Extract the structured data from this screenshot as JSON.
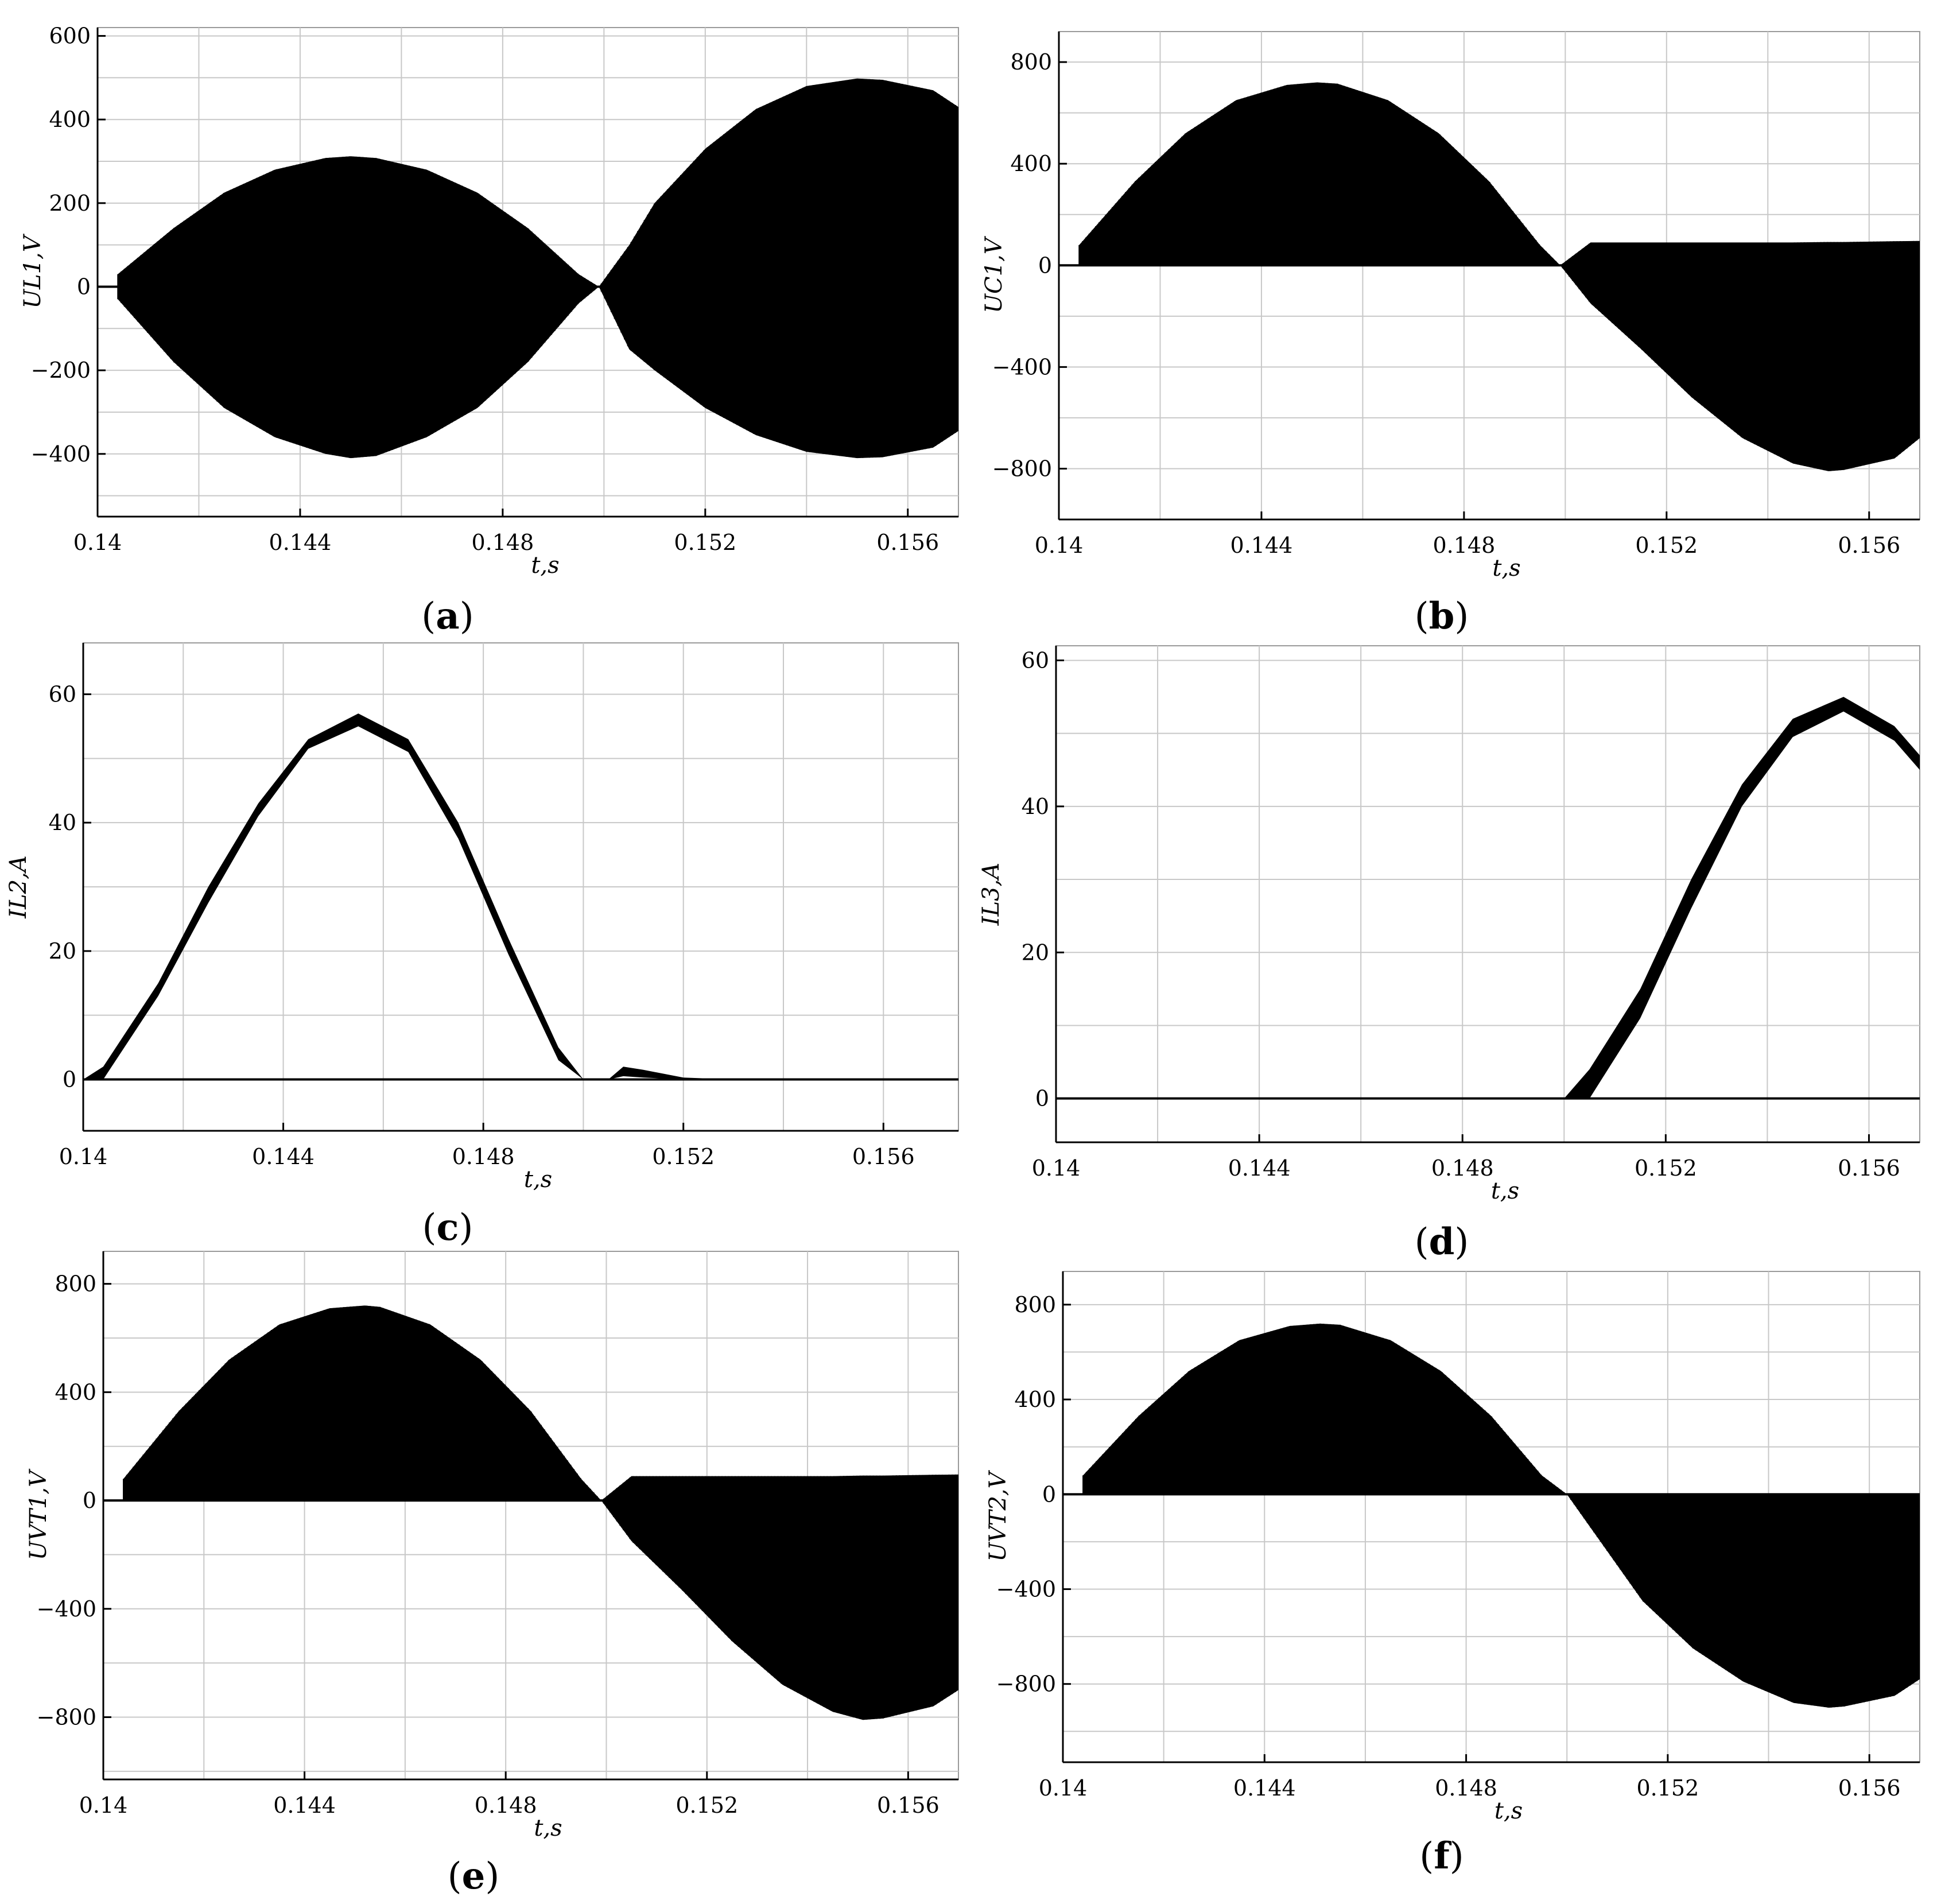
{
  "chart_data": [
    {
      "id": "a",
      "type": "line",
      "caption": "a",
      "xlabel": "t,s",
      "ylabel": "UL1,V",
      "xlim": [
        0.14,
        0.157
      ],
      "ylim": [
        -550,
        620
      ],
      "xticks": [
        0.14,
        0.144,
        0.148,
        0.152,
        0.156
      ],
      "xtick_labels": [
        "0.14",
        "0.144",
        "0.148",
        "0.152",
        "0.156"
      ],
      "yticks": [
        -400,
        -200,
        0,
        200,
        400,
        600
      ],
      "ytick_labels": [
        "−400",
        "−200",
        "0",
        "200",
        "400",
        "600"
      ],
      "grid": true,
      "series": [
        {
          "style": "switching-envelope",
          "x": [
            0.1404,
            0.1415,
            0.1425,
            0.1435,
            0.1445,
            0.145,
            0.1455,
            0.1465,
            0.1475,
            0.1485,
            0.1495,
            0.1499,
            0.1505,
            0.151,
            0.152,
            0.153,
            0.154,
            0.155,
            0.1555,
            0.1565,
            0.157
          ],
          "upper": [
            30,
            140,
            225,
            280,
            308,
            312,
            308,
            280,
            225,
            140,
            30,
            0,
            100,
            200,
            330,
            425,
            480,
            498,
            495,
            470,
            430
          ],
          "lower": [
            -30,
            -180,
            -290,
            -360,
            -400,
            -410,
            -405,
            -360,
            -290,
            -180,
            -40,
            0,
            -150,
            -200,
            -290,
            -355,
            -395,
            -410,
            -408,
            -385,
            -345
          ]
        }
      ]
    },
    {
      "id": "b",
      "type": "line",
      "caption": "b",
      "xlabel": "t,s",
      "ylabel": "UC1,V",
      "xlim": [
        0.14,
        0.157
      ],
      "ylim": [
        -1000,
        920
      ],
      "xticks": [
        0.14,
        0.144,
        0.148,
        0.152,
        0.156
      ],
      "xtick_labels": [
        "0.14",
        "0.144",
        "0.148",
        "0.152",
        "0.156"
      ],
      "yticks": [
        -800,
        -400,
        0,
        400,
        800
      ],
      "ytick_labels": [
        "−800",
        "−400",
        "0",
        "400",
        "800"
      ],
      "grid": true,
      "series": [
        {
          "style": "switching-envelope",
          "x": [
            0.1404,
            0.1415,
            0.1425,
            0.1435,
            0.1445,
            0.1451,
            0.1455,
            0.1465,
            0.1475,
            0.1485,
            0.1495,
            0.1499,
            0.1505,
            0.1515,
            0.1525,
            0.1535,
            0.1545,
            0.1552,
            0.1555,
            0.1565,
            0.157
          ],
          "upper": [
            80,
            330,
            520,
            650,
            710,
            720,
            715,
            650,
            520,
            330,
            80,
            0,
            90,
            90,
            90,
            90,
            90,
            92,
            92,
            95,
            96
          ],
          "lower": [
            0,
            0,
            0,
            0,
            0,
            0,
            0,
            0,
            0,
            0,
            0,
            0,
            -150,
            -330,
            -520,
            -680,
            -780,
            -810,
            -805,
            -760,
            -680
          ]
        }
      ]
    },
    {
      "id": "c",
      "type": "line",
      "caption": "c",
      "xlabel": "t,s",
      "ylabel": "IL2,A",
      "xlim": [
        0.14,
        0.1575
      ],
      "ylim": [
        -8,
        68
      ],
      "xticks": [
        0.14,
        0.144,
        0.148,
        0.152,
        0.156
      ],
      "xtick_labels": [
        "0.14",
        "0.144",
        "0.148",
        "0.152",
        "0.156"
      ],
      "yticks": [
        0,
        20,
        40,
        60
      ],
      "ytick_labels": [
        "0",
        "20",
        "40",
        "60"
      ],
      "grid": true,
      "series": [
        {
          "style": "ripple-band",
          "x": [
            0.14,
            0.1404,
            0.1415,
            0.1425,
            0.1435,
            0.1445,
            0.1455,
            0.1465,
            0.1475,
            0.1485,
            0.1495,
            0.15,
            0.1505,
            0.1508,
            0.1512,
            0.152,
            0.153,
            0.1575
          ],
          "upper": [
            0,
            2,
            15,
            30,
            43,
            53,
            57,
            53,
            40,
            22,
            5,
            0,
            0,
            2,
            1.5,
            0.3,
            0,
            0
          ],
          "lower": [
            0,
            0,
            13,
            27.5,
            41,
            51.5,
            55,
            51,
            37.5,
            19.5,
            3,
            0,
            0,
            0.5,
            0.3,
            0,
            0,
            0
          ]
        }
      ]
    },
    {
      "id": "d",
      "type": "line",
      "caption": "d",
      "xlabel": "t,s",
      "ylabel": "IL3,A",
      "xlim": [
        0.14,
        0.157
      ],
      "ylim": [
        -6,
        62
      ],
      "xticks": [
        0.14,
        0.144,
        0.148,
        0.152,
        0.156
      ],
      "xtick_labels": [
        "0.14",
        "0.144",
        "0.148",
        "0.152",
        "0.156"
      ],
      "yticks": [
        0,
        20,
        40,
        60
      ],
      "ytick_labels": [
        "0",
        "20",
        "40",
        "60"
      ],
      "grid": true,
      "series": [
        {
          "style": "ripple-band",
          "x": [
            0.14,
            0.15,
            0.1505,
            0.1515,
            0.1525,
            0.1535,
            0.1545,
            0.1555,
            0.1565,
            0.157
          ],
          "upper": [
            0,
            0,
            4,
            15,
            30,
            43,
            52,
            55,
            51,
            47
          ],
          "lower": [
            0,
            0,
            0,
            11,
            26,
            40,
            49.5,
            53,
            49,
            45
          ]
        }
      ]
    },
    {
      "id": "e",
      "type": "line",
      "caption": "e",
      "xlabel": "t,s",
      "ylabel": "UVT1,V",
      "xlim": [
        0.14,
        0.157
      ],
      "ylim": [
        -1030,
        920
      ],
      "xticks": [
        0.14,
        0.144,
        0.148,
        0.152,
        0.156
      ],
      "xtick_labels": [
        "0.14",
        "0.144",
        "0.148",
        "0.152",
        "0.156"
      ],
      "yticks": [
        -800,
        -400,
        0,
        400,
        800
      ],
      "ytick_labels": [
        "−800",
        "−400",
        "0",
        "400",
        "800"
      ],
      "grid": true,
      "series": [
        {
          "style": "switching-envelope",
          "x": [
            0.1404,
            0.1415,
            0.1425,
            0.1435,
            0.1445,
            0.1452,
            0.1455,
            0.1465,
            0.1475,
            0.1485,
            0.1495,
            0.1499,
            0.1505,
            0.1515,
            0.1525,
            0.1535,
            0.1545,
            0.1551,
            0.1555,
            0.1565,
            0.157
          ],
          "upper": [
            80,
            330,
            520,
            650,
            710,
            720,
            715,
            650,
            520,
            330,
            80,
            0,
            90,
            90,
            90,
            90,
            90,
            92,
            92,
            95,
            96
          ],
          "lower": [
            0,
            0,
            0,
            0,
            0,
            0,
            0,
            0,
            0,
            0,
            0,
            0,
            -150,
            -330,
            -520,
            -680,
            -780,
            -810,
            -805,
            -760,
            -700
          ]
        }
      ]
    },
    {
      "id": "f",
      "type": "line",
      "caption": "f",
      "xlabel": "t,s",
      "ylabel": "UVT2,V",
      "xlim": [
        0.14,
        0.157
      ],
      "ylim": [
        -1130,
        940
      ],
      "xticks": [
        0.14,
        0.144,
        0.148,
        0.152,
        0.156
      ],
      "xtick_labels": [
        "0.14",
        "0.144",
        "0.148",
        "0.152",
        "0.156"
      ],
      "yticks": [
        -800,
        -400,
        0,
        400,
        800
      ],
      "ytick_labels": [
        "−800",
        "−400",
        "0",
        "400",
        "800"
      ],
      "grid": true,
      "series": [
        {
          "style": "switching-envelope",
          "x": [
            0.1404,
            0.1415,
            0.1425,
            0.1435,
            0.1445,
            0.1451,
            0.1455,
            0.1465,
            0.1475,
            0.1485,
            0.1495,
            0.15,
            0.1505,
            0.1515,
            0.1525,
            0.1535,
            0.1545,
            0.1552,
            0.1555,
            0.1565,
            0.157
          ],
          "upper": [
            80,
            330,
            520,
            650,
            710,
            720,
            715,
            650,
            520,
            330,
            80,
            0,
            0,
            0,
            0,
            0,
            0,
            0,
            0,
            0,
            0
          ],
          "lower": [
            0,
            0,
            0,
            0,
            0,
            0,
            0,
            0,
            0,
            0,
            0,
            0,
            -150,
            -450,
            -650,
            -790,
            -880,
            -900,
            -895,
            -850,
            -780
          ]
        }
      ]
    }
  ]
}
